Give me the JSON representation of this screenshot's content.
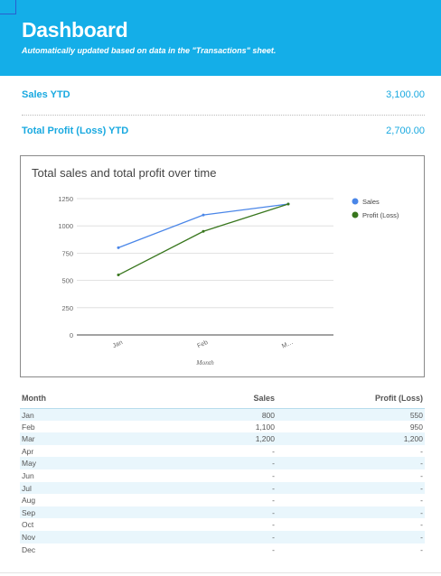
{
  "header": {
    "title": "Dashboard",
    "subtitle": "Automatically updated based on data in the \"Transactions\" sheet.",
    "bg_color": "#14aee8"
  },
  "kpis": [
    {
      "label": "Sales YTD",
      "value": "3,100.00"
    },
    {
      "label": "Total Profit (Loss) YTD",
      "value": "2,700.00"
    }
  ],
  "chart_data": {
    "type": "line",
    "title": "Total sales and total profit over time",
    "xlabel": "Month",
    "ylabel": "",
    "categories": [
      "Jan",
      "Feb",
      "M…"
    ],
    "ylim": [
      0,
      1250
    ],
    "yticks": [
      0,
      250,
      500,
      750,
      1000,
      1250
    ],
    "grid": true,
    "legend": "right",
    "series": [
      {
        "name": "Sales",
        "values": [
          800,
          1100,
          1200
        ],
        "color": "#4a86e8"
      },
      {
        "name": "Profit (Loss)",
        "values": [
          550,
          950,
          1200
        ],
        "color": "#38761d"
      }
    ]
  },
  "table": {
    "headers": [
      "Month",
      "Sales",
      "Profit (Loss)"
    ],
    "rows": [
      [
        "Jan",
        "800",
        "550"
      ],
      [
        "Feb",
        "1,100",
        "950"
      ],
      [
        "Mar",
        "1,200",
        "1,200"
      ],
      [
        "Apr",
        "-",
        "-"
      ],
      [
        "May",
        "-",
        "-"
      ],
      [
        "Jun",
        "-",
        "-"
      ],
      [
        "Jul",
        "-",
        "-"
      ],
      [
        "Aug",
        "-",
        "-"
      ],
      [
        "Sep",
        "-",
        "-"
      ],
      [
        "Oct",
        "-",
        "-"
      ],
      [
        "Nov",
        "-",
        "-"
      ],
      [
        "Dec",
        "-",
        "-"
      ]
    ]
  }
}
